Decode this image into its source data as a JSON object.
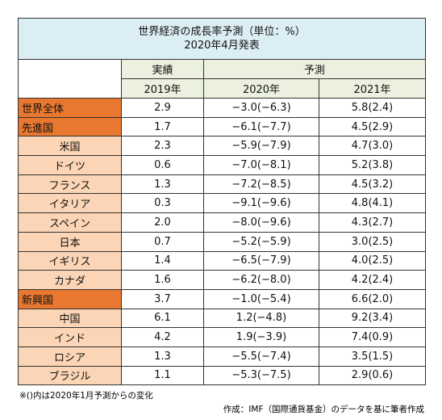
{
  "table": {
    "title": [
      "世界経済の成長率予測（単位：%）",
      "2020年4月発表"
    ],
    "group_headers": [
      "実績",
      "予測"
    ],
    "year_headers": [
      "2019年",
      "2020年",
      "2021年"
    ],
    "rows": [
      [
        "世界全体",
        "2.9",
        "−3.0(−6.3)",
        "5.8(2.4)"
      ],
      [
        "先進国",
        "1.7",
        "−6.1(−7.7)",
        "4.5(2.9)"
      ],
      [
        "米国",
        "2.3",
        "−5.9(−7.9)",
        "4.7(3.0)"
      ],
      [
        "ドイツ",
        "0.6",
        "−7.0(−8.1)",
        "5.2(3.8)"
      ],
      [
        "フランス",
        "1.3",
        "−7.2(−8.5)",
        "4.5(3.2)"
      ],
      [
        "イタリア",
        "0.3",
        "−9.1(−9.6)",
        "4.8(4.1)"
      ],
      [
        "スペイン",
        "2.0",
        "−8.0(−9.6)",
        "4.3(2.7)"
      ],
      [
        "日本",
        "0.7",
        "−5.2(−5.9)",
        "3.0(2.5)"
      ],
      [
        "イギリス",
        "1.4",
        "−6.5(−7.9)",
        "4.0(2.5)"
      ],
      [
        "カナダ",
        "1.6",
        "−6.2(−8.0)",
        "4.2(2.4)"
      ],
      [
        "新興国",
        "3.7",
        "−1.0(−5.4)",
        "6.6(2.0)"
      ],
      [
        "中国",
        "6.1",
        "1.2(−4.8)",
        "9.2(3.4)"
      ],
      [
        "インド",
        "4.2",
        "1.9(−3.9)",
        "7.4(0.9)"
      ],
      [
        "ロシア",
        "1.3",
        "−5.5(−7.4)",
        "3.5(1.5)"
      ],
      [
        "ブラジル",
        "1.1",
        "−5.3(−7.5)",
        "2.9(0.6)"
      ]
    ],
    "group_rows": [
      0,
      1,
      10
    ]
  },
  "footnote": "※()内は2020年1月予測からの変化",
  "credit": "作成：IMF（国際通貨基金）のデータを基に筆者作成"
}
